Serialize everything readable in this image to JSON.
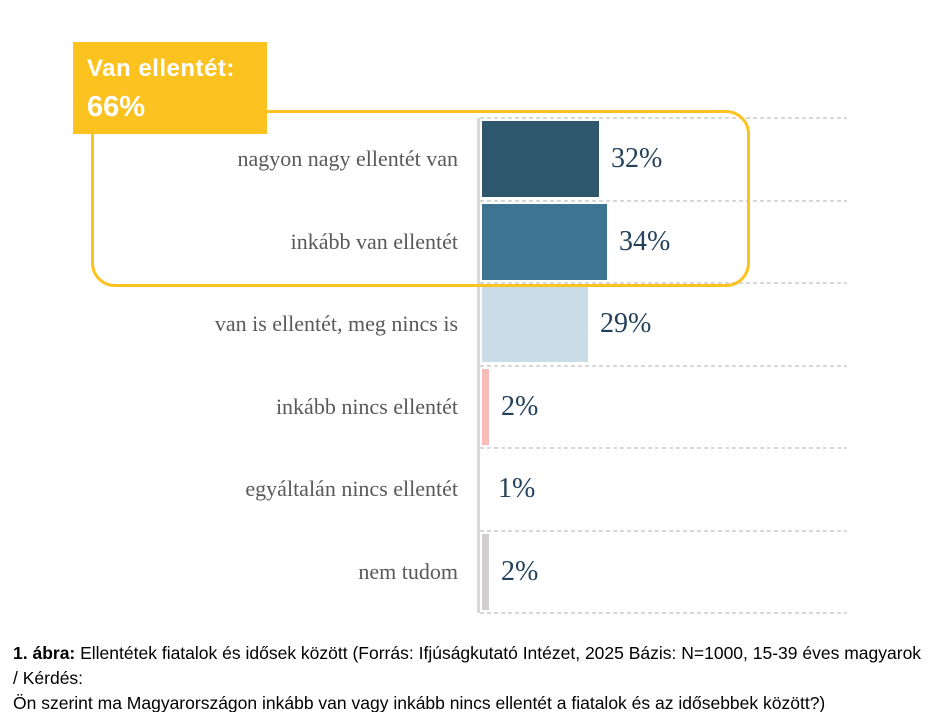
{
  "callout": {
    "title_label": "Van ellentét:",
    "value_label": "66%",
    "bg_color": "#FCC320",
    "text_color": "#FFFFFF"
  },
  "caption": {
    "line1_bold": "1. ábra:",
    "line1_rest": " Ellentétek fiatalok és idősek között (Forrás: Ifjúságkutató Intézet, 2025 Bázis: N=1000, 15-39 éves magyarok / Kérdés:",
    "line2": "Ön szerint ma Magyarországon inkább van vagy inkább nincs ellentét a fiatalok és az idősebbek között?)"
  },
  "chart_data": {
    "type": "bar",
    "orientation": "horizontal",
    "categories": [
      "nagyon nagy ellentét van",
      "inkább van ellentét",
      "van is ellentét, meg nincs is",
      "inkább nincs ellentét",
      "egyáltalán nincs ellentét",
      "nem tudom"
    ],
    "values": [
      32,
      34,
      29,
      2,
      1,
      2
    ],
    "value_labels": [
      "32%",
      "34%",
      "29%",
      "2%",
      "1%",
      "2%"
    ],
    "bar_colors": [
      "#2E566C",
      "#3E7491",
      "#CADCE8",
      "#F7BCB9",
      "#FFFFFF",
      "#D0CECE"
    ],
    "xlim": [
      0,
      100
    ],
    "xlabel": "",
    "ylabel": "",
    "title": "",
    "grid": "dashed horizontal category-boundary gridlines, light gray",
    "legend": "none",
    "value_label_color": "#24415C",
    "category_label_color": "#595959",
    "highlight": {
      "rows": [
        "nagyon nagy ellentét van",
        "inkább van ellentét"
      ],
      "label": "Van ellentét: 66%",
      "color": "#FCC320"
    }
  }
}
